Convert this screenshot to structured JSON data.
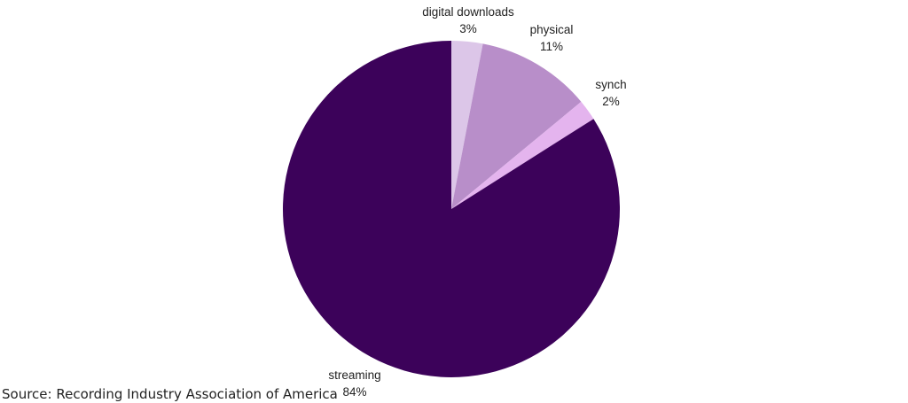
{
  "chart_data": {
    "type": "pie",
    "title": "",
    "start": "top",
    "direction": "clockwise",
    "slices": [
      {
        "label": "digital downloads",
        "value": 3,
        "value_label": "3%",
        "color": "#dcc6e8"
      },
      {
        "label": "physical",
        "value": 11,
        "value_label": "11%",
        "color": "#b88ec9"
      },
      {
        "label": "synch",
        "value": 2,
        "value_label": "2%",
        "color": "#e4b4ee"
      },
      {
        "label": "streaming",
        "value": 84,
        "value_label": "84%",
        "color": "#3c025a"
      }
    ]
  },
  "source_note": "Source: Recording Industry Association of America"
}
